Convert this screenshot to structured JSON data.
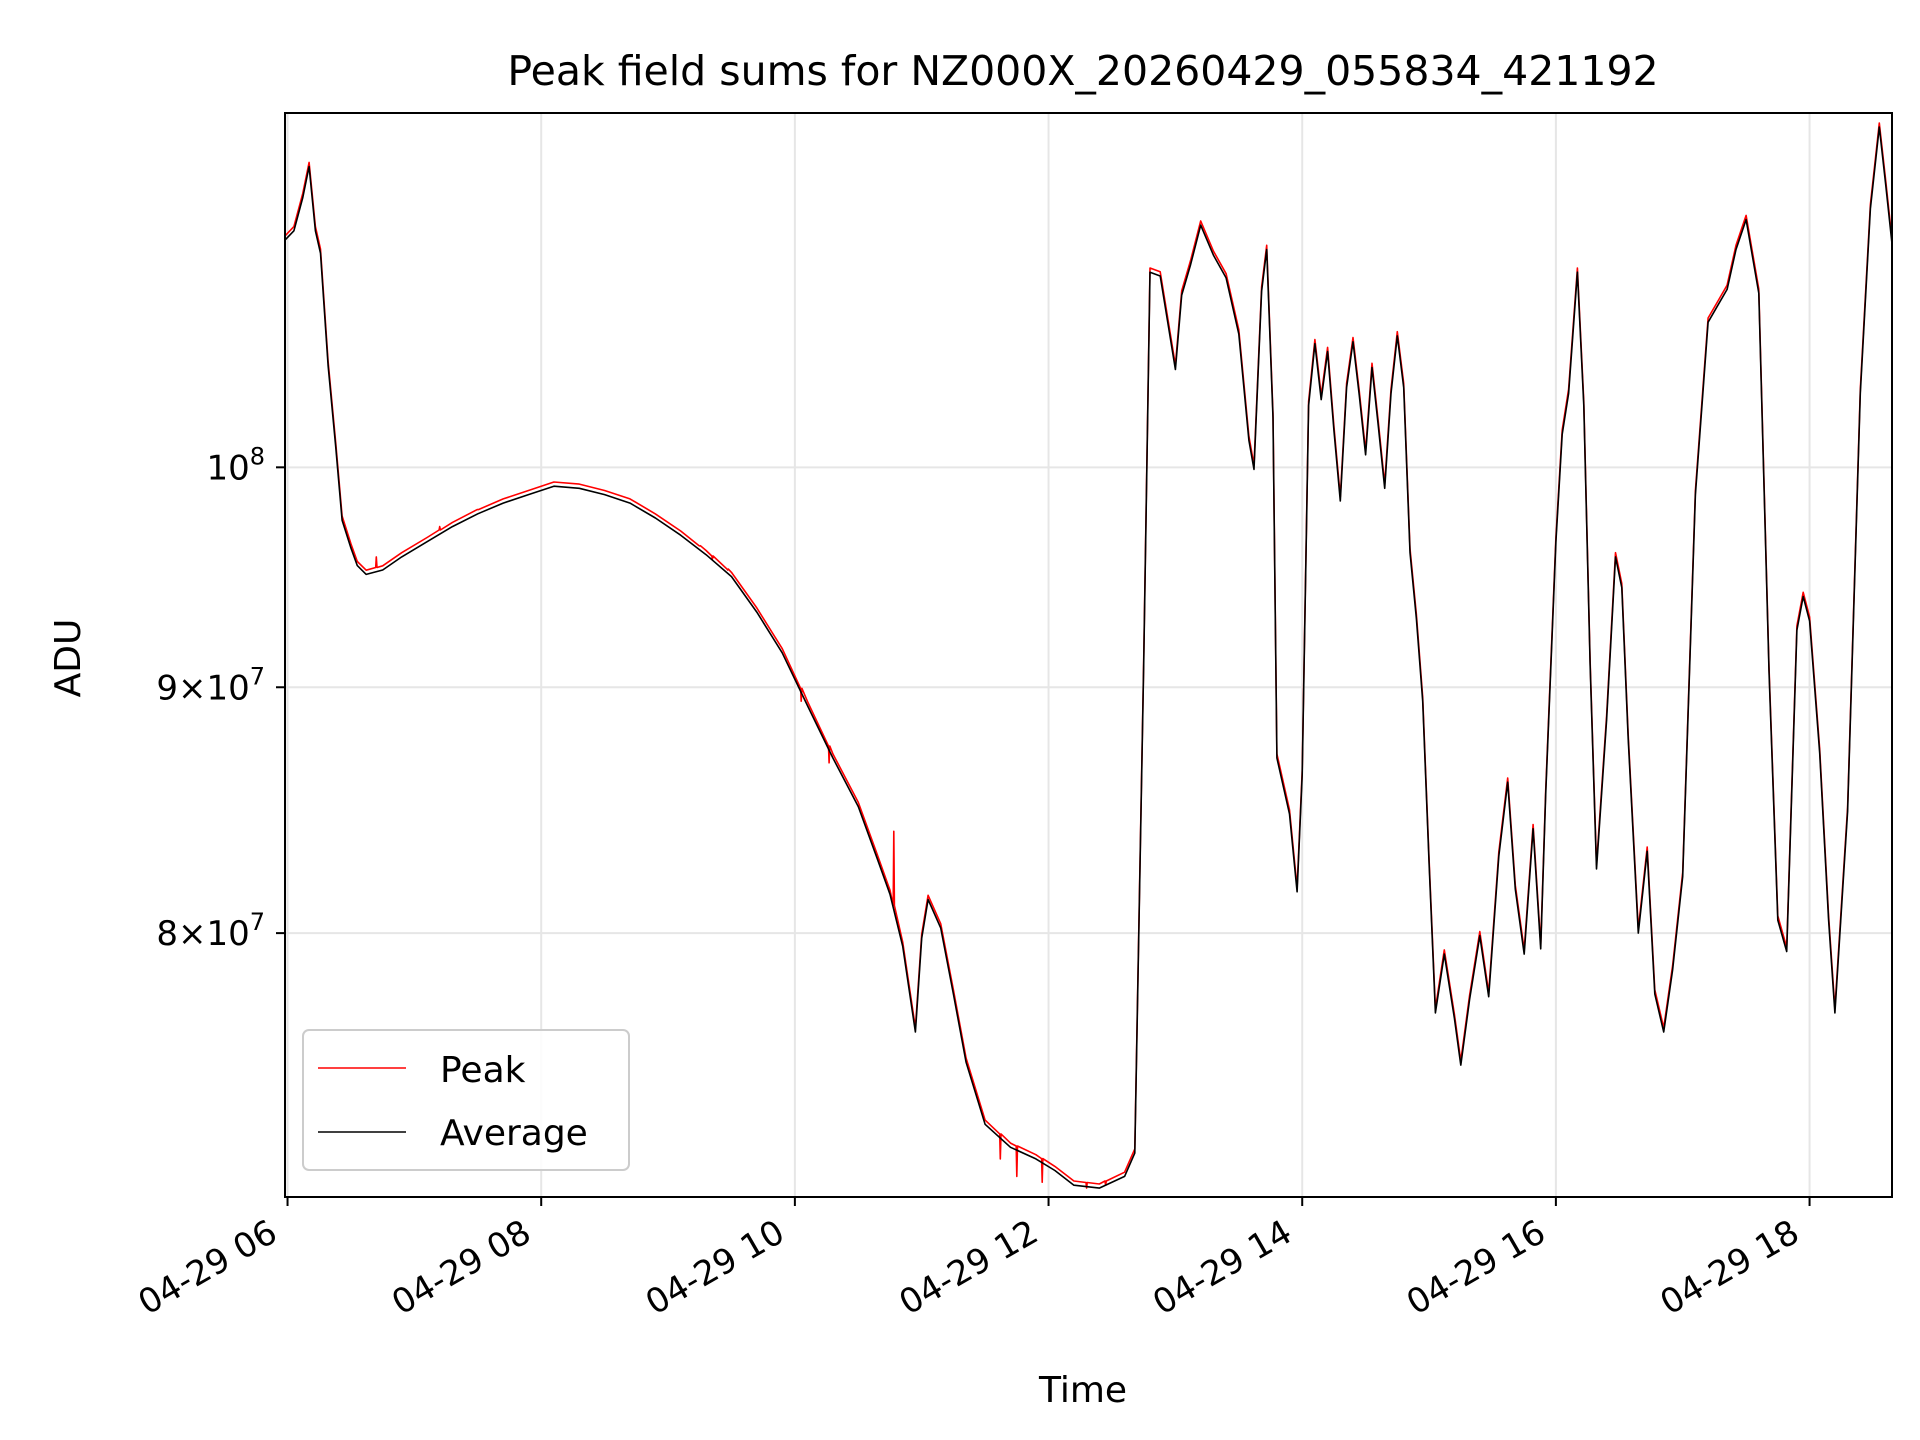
{
  "chart_data": {
    "type": "line",
    "title": "Peak field sums for NZ000X_20260429_055834_421192",
    "xlabel": "Time",
    "ylabel": "ADU",
    "y_scale": "log",
    "x_range_hours": [
      5.98,
      18.65
    ],
    "ylim": [
      70500000,
      118500000
    ],
    "grid": true,
    "legend_position": "lower-left",
    "x_ticks": [
      {
        "hour": 6,
        "label": "04-29 06"
      },
      {
        "hour": 8,
        "label": "04-29 08"
      },
      {
        "hour": 10,
        "label": "04-29 10"
      },
      {
        "hour": 12,
        "label": "04-29 12"
      },
      {
        "hour": 14,
        "label": "04-29 14"
      },
      {
        "hour": 16,
        "label": "04-29 16"
      },
      {
        "hour": 18,
        "label": "04-29 18"
      }
    ],
    "y_ticks": [
      {
        "value": 80000000,
        "mant": "8",
        "sup": "7",
        "times": true
      },
      {
        "value": 90000000,
        "mant": "9",
        "sup": "7",
        "times": true
      },
      {
        "value": 100000000,
        "mant": "10",
        "sup": "8",
        "times": false
      }
    ],
    "series": [
      {
        "name": "Peak",
        "color": "#ff0000",
        "spikes": [
          [
            6.7,
            95.8
          ],
          [
            7.2,
            97.2
          ],
          [
            7.5,
            98.0
          ],
          [
            9.25,
            96.3
          ],
          [
            9.35,
            95.7
          ],
          [
            9.47,
            95.2
          ],
          [
            10.05,
            89.4
          ],
          [
            10.27,
            86.8
          ],
          [
            10.78,
            84.0
          ],
          [
            11.62,
            71.8
          ],
          [
            11.75,
            71.2
          ],
          [
            11.95,
            71.0
          ],
          [
            12.3,
            70.8
          ],
          [
            12.45,
            70.9
          ]
        ]
      },
      {
        "name": "Average",
        "color": "#000000",
        "points_time_hour_value_millions": [
          [
            5.98,
            111.5
          ],
          [
            6.05,
            112.0
          ],
          [
            6.12,
            113.8
          ],
          [
            6.17,
            115.5
          ],
          [
            6.22,
            112.0
          ],
          [
            6.26,
            110.8
          ],
          [
            6.32,
            105.0
          ],
          [
            6.38,
            101.0
          ],
          [
            6.43,
            97.5
          ],
          [
            6.5,
            96.2
          ],
          [
            6.55,
            95.4
          ],
          [
            6.62,
            95.0
          ],
          [
            6.75,
            95.2
          ],
          [
            6.9,
            95.8
          ],
          [
            7.1,
            96.5
          ],
          [
            7.3,
            97.2
          ],
          [
            7.5,
            97.8
          ],
          [
            7.7,
            98.3
          ],
          [
            7.9,
            98.7
          ],
          [
            8.1,
            99.1
          ],
          [
            8.3,
            99.0
          ],
          [
            8.5,
            98.7
          ],
          [
            8.7,
            98.3
          ],
          [
            8.9,
            97.6
          ],
          [
            9.1,
            96.8
          ],
          [
            9.3,
            95.9
          ],
          [
            9.5,
            94.9
          ],
          [
            9.7,
            93.3
          ],
          [
            9.9,
            91.5
          ],
          [
            10.1,
            89.2
          ],
          [
            10.3,
            87.0
          ],
          [
            10.5,
            85.0
          ],
          [
            10.65,
            82.9
          ],
          [
            10.75,
            81.5
          ],
          [
            10.85,
            79.5
          ],
          [
            10.95,
            76.3
          ],
          [
            11.0,
            79.8
          ],
          [
            11.05,
            81.3
          ],
          [
            11.15,
            80.2
          ],
          [
            11.25,
            77.7
          ],
          [
            11.35,
            75.2
          ],
          [
            11.5,
            73.0
          ],
          [
            11.7,
            72.2
          ],
          [
            11.9,
            71.8
          ],
          [
            12.05,
            71.4
          ],
          [
            12.2,
            70.9
          ],
          [
            12.4,
            70.8
          ],
          [
            12.6,
            71.2
          ],
          [
            12.68,
            72.0
          ],
          [
            12.75,
            91.0
          ],
          [
            12.8,
            109.8
          ],
          [
            12.88,
            109.6
          ],
          [
            12.95,
            106.8
          ],
          [
            13.0,
            104.8
          ],
          [
            13.05,
            108.6
          ],
          [
            13.12,
            110.2
          ],
          [
            13.2,
            112.3
          ],
          [
            13.3,
            110.7
          ],
          [
            13.4,
            109.5
          ],
          [
            13.5,
            106.6
          ],
          [
            13.58,
            101.3
          ],
          [
            13.62,
            99.9
          ],
          [
            13.68,
            108.8
          ],
          [
            13.72,
            111.0
          ],
          [
            13.77,
            102.4
          ],
          [
            13.8,
            87.0
          ],
          [
            13.9,
            84.7
          ],
          [
            13.96,
            81.6
          ],
          [
            14.0,
            86.3
          ],
          [
            14.05,
            103.0
          ],
          [
            14.1,
            106.1
          ],
          [
            14.15,
            103.3
          ],
          [
            14.2,
            105.7
          ],
          [
            14.25,
            101.8
          ],
          [
            14.3,
            98.4
          ],
          [
            14.35,
            103.9
          ],
          [
            14.4,
            106.2
          ],
          [
            14.45,
            103.5
          ],
          [
            14.5,
            100.6
          ],
          [
            14.55,
            104.9
          ],
          [
            14.6,
            102.0
          ],
          [
            14.65,
            99.0
          ],
          [
            14.7,
            103.6
          ],
          [
            14.75,
            106.5
          ],
          [
            14.8,
            103.9
          ],
          [
            14.85,
            96.0
          ],
          [
            14.9,
            93.0
          ],
          [
            14.95,
            89.4
          ],
          [
            15.0,
            82.7
          ],
          [
            15.05,
            77.0
          ],
          [
            15.12,
            79.2
          ],
          [
            15.2,
            76.8
          ],
          [
            15.25,
            75.1
          ],
          [
            15.32,
            77.5
          ],
          [
            15.4,
            79.9
          ],
          [
            15.47,
            77.6
          ],
          [
            15.55,
            83.0
          ],
          [
            15.62,
            86.0
          ],
          [
            15.68,
            81.7
          ],
          [
            15.75,
            79.2
          ],
          [
            15.82,
            84.1
          ],
          [
            15.88,
            79.4
          ],
          [
            15.92,
            85.5
          ],
          [
            16.0,
            96.5
          ],
          [
            16.05,
            101.6
          ],
          [
            16.1,
            103.6
          ],
          [
            16.17,
            109.8
          ],
          [
            16.22,
            103.0
          ],
          [
            16.27,
            91.0
          ],
          [
            16.32,
            82.5
          ],
          [
            16.4,
            88.6
          ],
          [
            16.47,
            95.8
          ],
          [
            16.52,
            94.4
          ],
          [
            16.57,
            87.8
          ],
          [
            16.65,
            80.0
          ],
          [
            16.72,
            83.2
          ],
          [
            16.78,
            77.7
          ],
          [
            16.85,
            76.3
          ],
          [
            16.92,
            78.6
          ],
          [
            17.0,
            82.2
          ],
          [
            17.1,
            98.7
          ],
          [
            17.2,
            107.2
          ],
          [
            17.28,
            108.1
          ],
          [
            17.35,
            108.9
          ],
          [
            17.42,
            111.0
          ],
          [
            17.5,
            112.6
          ],
          [
            17.6,
            108.7
          ],
          [
            17.68,
            90.7
          ],
          [
            17.75,
            80.5
          ],
          [
            17.82,
            79.3
          ],
          [
            17.9,
            92.5
          ],
          [
            17.95,
            94.0
          ],
          [
            18.0,
            92.9
          ],
          [
            18.08,
            87.2
          ],
          [
            18.15,
            80.5
          ],
          [
            18.2,
            77.0
          ],
          [
            18.3,
            84.8
          ],
          [
            18.4,
            103.6
          ],
          [
            18.48,
            113.2
          ],
          [
            18.55,
            117.7
          ],
          [
            18.6,
            114.5
          ],
          [
            18.65,
            111.3
          ]
        ]
      }
    ]
  }
}
